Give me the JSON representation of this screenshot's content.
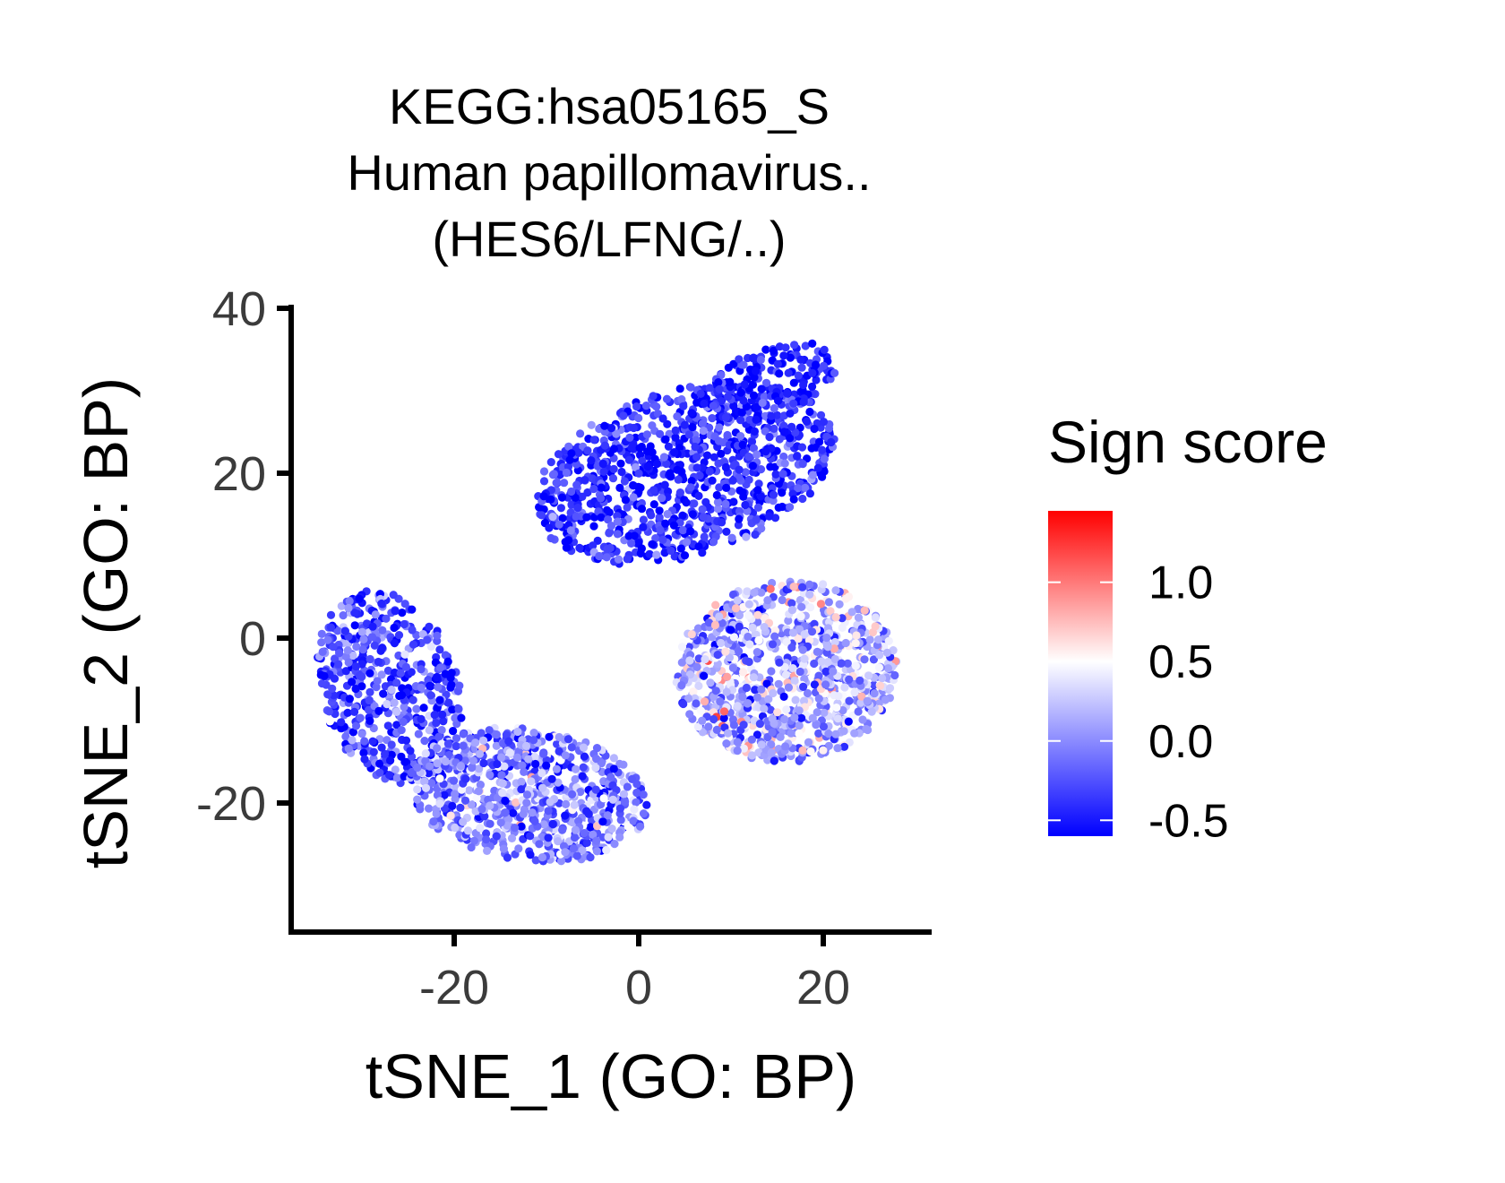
{
  "chart_data": {
    "type": "scatter",
    "title_lines": [
      "KEGG:hsa05165_S",
      "Human papillomavirus..",
      "(HES6/LFNG/..)"
    ],
    "xlabel": "tSNE_1 (GO: BP)",
    "ylabel": "tSNE_2 (GO: BP)",
    "xlim": [
      -35,
      33
    ],
    "ylim": [
      -36,
      40
    ],
    "x_ticks": [
      -20,
      0,
      20
    ],
    "x_tick_labels": [
      "-20",
      "0",
      "20"
    ],
    "y_ticks": [
      -20,
      0,
      20,
      40
    ],
    "y_tick_labels": [
      "-20",
      "0",
      "20",
      "40"
    ],
    "grid": false,
    "legend": {
      "title": "Sign score",
      "position": "right",
      "range": [
        -0.6,
        1.45
      ],
      "ticks": [
        -0.5,
        0.0,
        0.5,
        1.0
      ],
      "tick_labels": [
        "-0.5",
        "0.0",
        "0.5",
        "1.0"
      ],
      "colors": {
        "low": "#0000ff",
        "mid": "#ffffff",
        "high": "#ff0000"
      },
      "midpoint": 0.5
    },
    "approx_point_count": 3500,
    "regions": [
      {
        "name": "left cluster",
        "x_range": [
          -35,
          -17
        ],
        "y_range": [
          -22,
          9
        ],
        "mean_score": -0.3
      },
      {
        "name": "bottom cluster",
        "x_range": [
          -25,
          8
        ],
        "y_range": [
          -33,
          -5
        ],
        "mean_score": -0.05
      },
      {
        "name": "upper cluster",
        "x_range": [
          -15,
          24
        ],
        "y_range": [
          8,
          37
        ],
        "mean_score": -0.4
      },
      {
        "name": "right-middle cluster",
        "x_range": [
          -5,
          30
        ],
        "y_range": [
          -20,
          10
        ],
        "mean_score": 0.15
      }
    ]
  }
}
